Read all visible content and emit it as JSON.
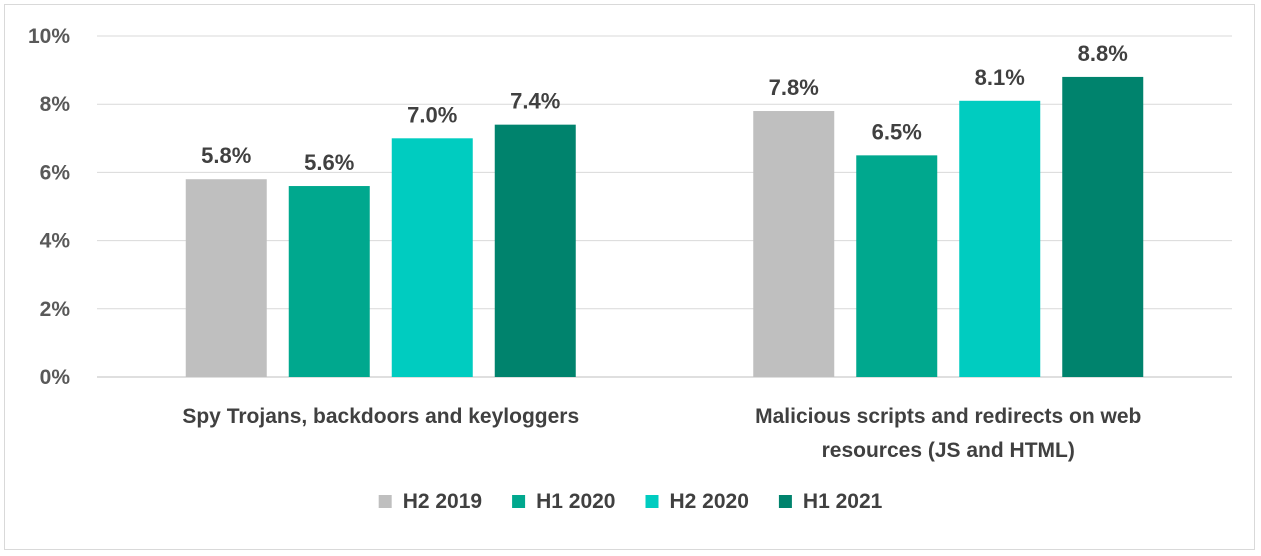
{
  "chart_data": {
    "type": "bar",
    "categories": [
      "Spy Trojans, backdoors and keyloggers",
      "Malicious scripts and redirects on web resources (JS and HTML)"
    ],
    "category_lines": [
      [
        "Spy Trojans, backdoors and keyloggers"
      ],
      [
        "Malicious scripts and redirects on web",
        "resources (JS and HTML)"
      ]
    ],
    "series": [
      {
        "name": "H2 2019",
        "values": [
          5.8,
          7.8
        ],
        "labels": [
          "5.8%",
          "7.8%"
        ],
        "color": "#bfbfbf"
      },
      {
        "name": "H1 2020",
        "values": [
          5.6,
          6.5
        ],
        "labels": [
          "5.6%",
          "6.5%"
        ],
        "color": "#00a88e"
      },
      {
        "name": "H2 2020",
        "values": [
          7.0,
          8.1
        ],
        "labels": [
          "7.0%",
          "8.1%"
        ],
        "color": "#00ccc0"
      },
      {
        "name": "H1 2021",
        "values": [
          7.4,
          8.8
        ],
        "labels": [
          "7.4%",
          "8.8%"
        ],
        "color": "#00836d"
      }
    ],
    "ylim": [
      0,
      10
    ],
    "yticks": [
      {
        "value": 0,
        "label": "0%"
      },
      {
        "value": 2,
        "label": "2%"
      },
      {
        "value": 4,
        "label": "4%"
      },
      {
        "value": 6,
        "label": "6%"
      },
      {
        "value": 8,
        "label": "8%"
      },
      {
        "value": 10,
        "label": "10%"
      }
    ],
    "grid": true,
    "legend_position": "bottom",
    "title": "",
    "xlabel": "",
    "ylabel": ""
  }
}
